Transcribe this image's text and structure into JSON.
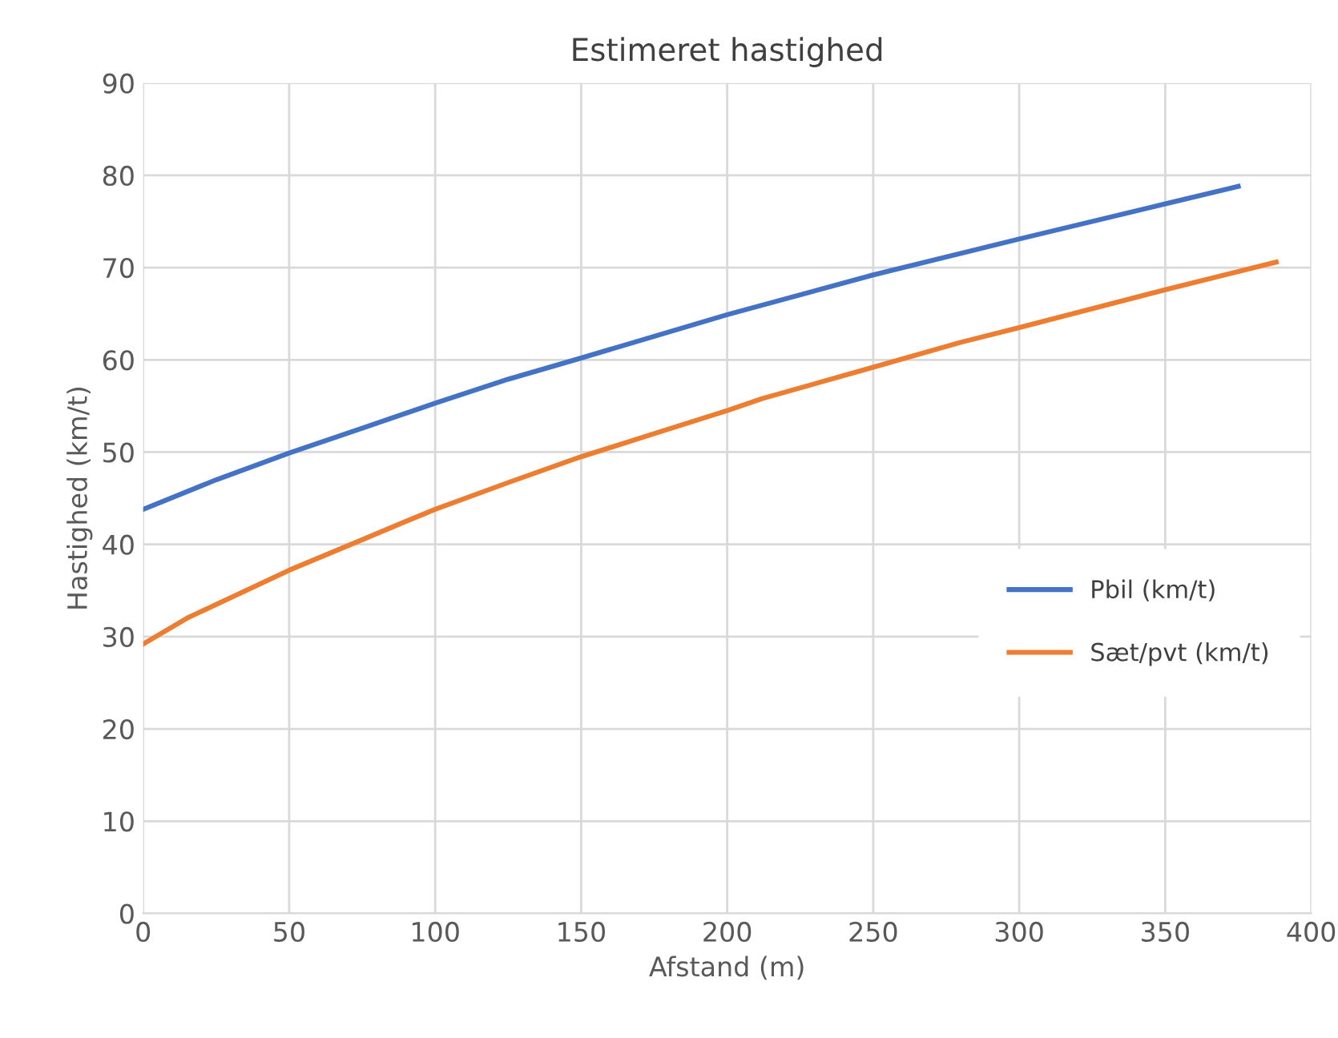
{
  "chart_data": {
    "type": "line",
    "title": "Estimeret hastighed",
    "xlabel": "Afstand (m)",
    "ylabel": "Hastighed (km/t)",
    "series": [
      {
        "name": "Pbil (km/t)",
        "color": "#4472c4",
        "x": [
          0,
          25,
          50,
          75,
          100,
          125,
          150,
          200,
          250,
          300,
          350,
          375
        ],
        "values": [
          43.8,
          47,
          49.9,
          52.6,
          55.3,
          57.9,
          60.2,
          64.9,
          69.2,
          73.1,
          76.9,
          78.8
        ]
      },
      {
        "name": "Sæt/pvt (km/t)",
        "color": "#ed7d31",
        "x": [
          0,
          15,
          50,
          75,
          90,
          100,
          125,
          150,
          175,
          200,
          212,
          250,
          280,
          300,
          350,
          388
        ],
        "values": [
          29.2,
          32,
          37.2,
          40.5,
          42.5,
          43.8,
          46.7,
          49.5,
          52,
          54.5,
          55.8,
          59.2,
          61.9,
          63.5,
          67.6,
          70.6
        ]
      }
    ],
    "xlim": [
      0,
      400
    ],
    "xticks": [
      0,
      50,
      100,
      150,
      200,
      250,
      300,
      350,
      400
    ],
    "ylim": [
      0,
      90
    ],
    "yticks": [
      0,
      10,
      20,
      30,
      40,
      50,
      60,
      70,
      80,
      90
    ],
    "grid": true,
    "legend": "right",
    "marker": "none",
    "line_style": "solid"
  }
}
